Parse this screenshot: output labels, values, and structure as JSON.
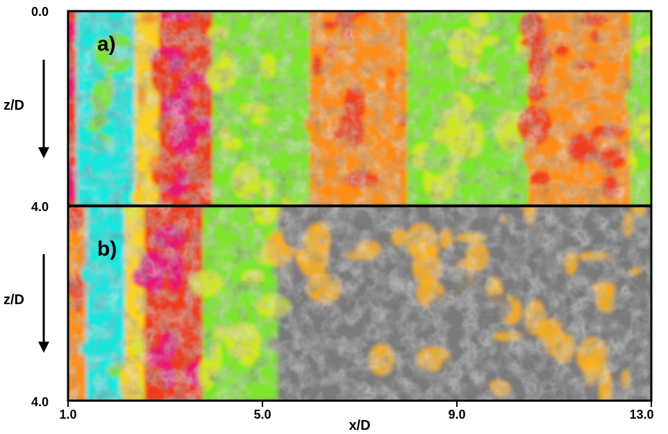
{
  "chart_data": [
    {
      "type": "heatmap",
      "panel_label": "a)",
      "xlabel": "",
      "ylabel": "z/D",
      "xlim": [
        1.0,
        13.0
      ],
      "ylim": [
        0.0,
        4.0
      ],
      "y_ticks": [
        "0.0",
        "4.0"
      ],
      "x_ticks": [],
      "direction_arrow": "down",
      "colormap": [
        "#7a7a7a",
        "#d8e820",
        "#7ce62a",
        "#16e8e0",
        "#ffd21e",
        "#ff8c14",
        "#f03a1c",
        "#e8147a"
      ],
      "dominant_bands": [
        {
          "x_range": [
            1.0,
            1.2
          ],
          "level": "red-magenta"
        },
        {
          "x_range": [
            1.2,
            2.4
          ],
          "level": "cyan"
        },
        {
          "x_range": [
            2.4,
            2.9
          ],
          "level": "yellow-orange"
        },
        {
          "x_range": [
            2.9,
            4.0
          ],
          "level": "red-magenta"
        },
        {
          "x_range": [
            4.0,
            6.0
          ],
          "level": "green"
        },
        {
          "x_range": [
            6.0,
            8.0
          ],
          "level": "orange-red"
        },
        {
          "x_range": [
            8.0,
            10.5
          ],
          "level": "green"
        },
        {
          "x_range": [
            10.5,
            12.6
          ],
          "level": "orange-red"
        },
        {
          "x_range": [
            12.6,
            13.0
          ],
          "level": "green"
        }
      ]
    },
    {
      "type": "heatmap",
      "panel_label": "b)",
      "xlabel": "x/D",
      "ylabel": "z/D",
      "xlim": [
        1.0,
        13.0
      ],
      "ylim": [
        0.0,
        4.0
      ],
      "y_ticks": [
        "4.0"
      ],
      "x_ticks": [
        "1.0",
        "5.0",
        "9.0",
        "13.0"
      ],
      "direction_arrow": "down",
      "colormap": [
        "#7a7a7a",
        "#d8e820",
        "#7ce62a",
        "#16e8e0",
        "#ffd21e",
        "#ff8c14",
        "#f03a1c",
        "#e8147a"
      ],
      "dominant_bands": [
        {
          "x_range": [
            1.0,
            1.4
          ],
          "level": "orange-red"
        },
        {
          "x_range": [
            1.4,
            2.2
          ],
          "level": "cyan"
        },
        {
          "x_range": [
            2.2,
            2.6
          ],
          "level": "yellow"
        },
        {
          "x_range": [
            2.6,
            3.8
          ],
          "level": "red-magenta"
        },
        {
          "x_range": [
            3.8,
            5.3
          ],
          "level": "green"
        },
        {
          "x_range": [
            5.3,
            13.0
          ],
          "level": "gray-yellow-orange"
        }
      ]
    }
  ]
}
